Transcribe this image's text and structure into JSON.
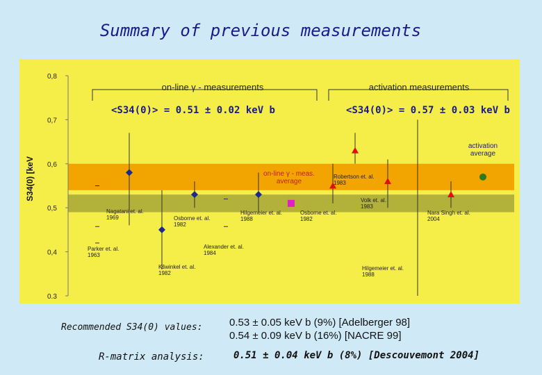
{
  "title": "Summary of previous measurements",
  "chart_data": {
    "type": "scatter",
    "ylabel": "S34(0) [keV",
    "ylim": [
      0.3,
      0.8
    ],
    "y_ticks": [
      "0.3",
      "0,4",
      "0,5",
      "0,6",
      "0,7",
      "0,8"
    ],
    "grid": false,
    "section_labels": [
      "on-line γ - measurements",
      "activation measurements"
    ],
    "section_averages": [
      "<S34(0)> = 0.51 ± 0.02 keV b",
      "<S34(0)> = 0.57 ± 0.03 keV b"
    ],
    "bands": [
      {
        "name": "activation average band",
        "ylim": [
          0.54,
          0.6
        ],
        "color": "#f2a400"
      },
      {
        "name": "on-line average band",
        "ylim": [
          0.49,
          0.53
        ],
        "color": "#b2b13a"
      }
    ],
    "series": [
      {
        "method": "on-line",
        "marker": "diamond",
        "color": "#1a2a8c",
        "points": [
          {
            "label": "Parker et. al.\n1963",
            "value": 0.47,
            "err": [
              0.47,
              0.47
            ],
            "mark": "-"
          },
          {
            "label": "Nagatani et. al.\n1969",
            "value": 0.58,
            "err": [
              0.46,
              0.67
            ]
          },
          {
            "label": "Kšwinkel et. al.\n1982",
            "value": 0.45,
            "err": [
              0.36,
              0.54
            ]
          },
          {
            "label": "Osborne et. al.\n1982",
            "value": 0.53,
            "err": [
              0.5,
              0.56
            ]
          },
          {
            "label": "Alexander et. al.\n1984",
            "value": 0.47,
            "err": [
              0.47,
              0.47
            ],
            "mark": "-"
          },
          {
            "label": "Hilgemeier et. al.\n1988",
            "value": 0.53,
            "err": [
              0.49,
              0.58
            ]
          }
        ]
      },
      {
        "method": "activation",
        "marker": "triangle",
        "color": "#dd1111",
        "points": [
          {
            "label": "Osborne et. al.\n1982",
            "value": 0.55,
            "err": [
              0.51,
              0.6
            ]
          },
          {
            "label": "Robertson et. al.\n1983",
            "value": 0.63,
            "err": [
              0.6,
              0.67
            ]
          },
          {
            "label": "Volk et. al.\n1983",
            "value": 0.56,
            "err": [
              0.5,
              0.61
            ]
          },
          {
            "label": "Hilgemeier et. al.\n1988",
            "value": 0.3,
            "err": [
              0.3,
              0.7
            ]
          },
          {
            "label": "Nara Singh et. al.\n2004",
            "value": 0.53,
            "err": [
              0.5,
              0.56
            ]
          }
        ]
      }
    ],
    "averages": [
      {
        "label": "on-line γ - meas.\naverage",
        "value": 0.51,
        "color": "#e020c0",
        "marker": "square"
      },
      {
        "label": "activation\naverage",
        "value": 0.57,
        "color": "#2d7a18",
        "marker": "circle"
      }
    ]
  },
  "bottom": {
    "recommended_label": "Recommended S34(0) values:",
    "recommended_lines": [
      "0.53 ± 0.05 keV b (9%) [Adelberger 98]",
      "0.54 ± 0.09 keV b (16%) [NACRE 99]"
    ],
    "rmatrix_label": "R-matrix analysis:",
    "rmatrix_value": "0.51 ± 0.04 keV b (8%) [Descouvemont 2004]"
  }
}
